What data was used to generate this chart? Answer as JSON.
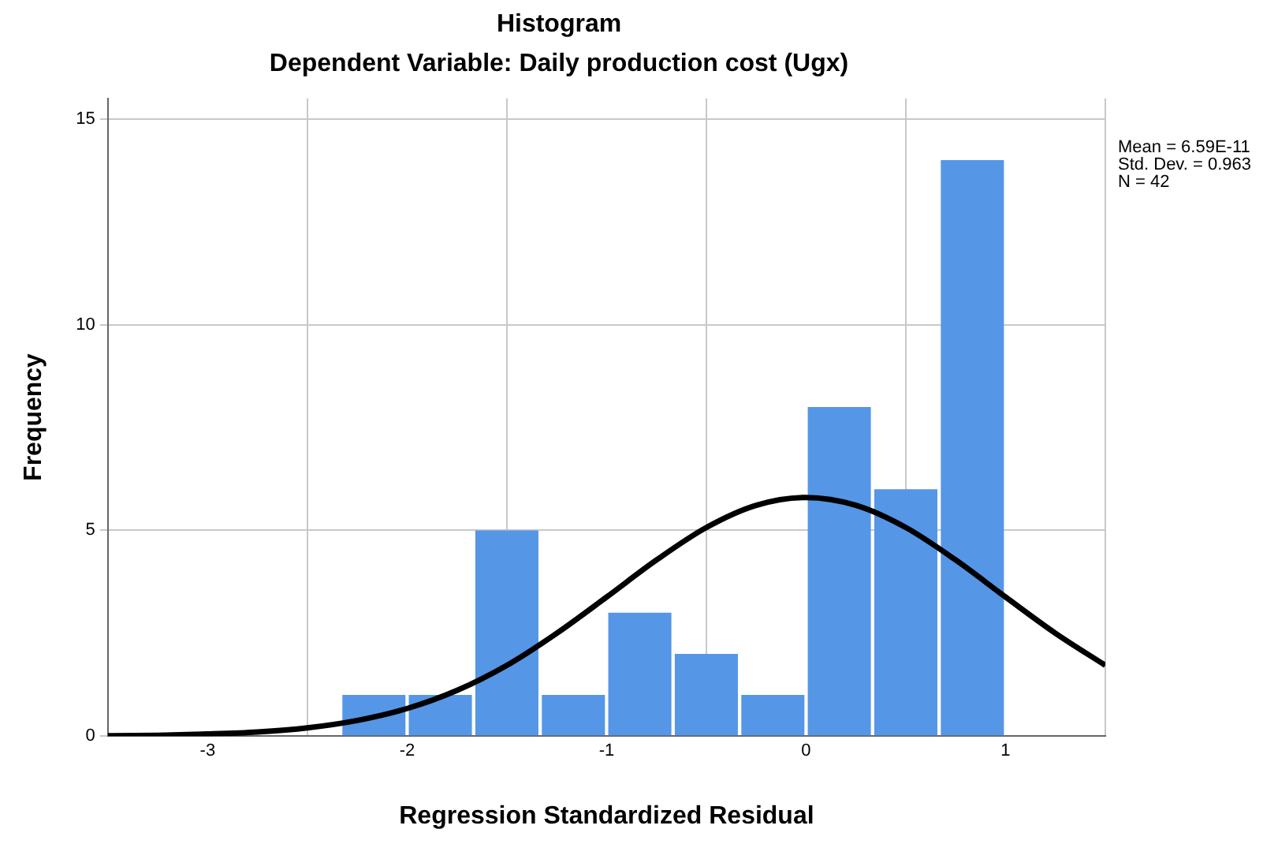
{
  "chart_data": {
    "type": "histogram",
    "title": "Histogram",
    "subtitle": "Dependent Variable: Daily production cost (Ugx)",
    "xlabel": "Regression Standardized Residual",
    "ylabel": "Frequency",
    "bins": [
      -2.333,
      -2,
      -1.667,
      -1.333,
      -1,
      -0.667,
      -0.333,
      0,
      0.333,
      0.667,
      1
    ],
    "values": [
      1,
      1,
      5,
      1,
      3,
      2,
      1,
      8,
      6,
      14
    ],
    "color": "#5596e6",
    "series": [
      {
        "type": "line",
        "color": "#000000",
        "x": [
          -3.5,
          -3.25,
          -3,
          -2.75,
          -2.5,
          -2.25,
          -2,
          -1.75,
          -1.5,
          -1.25,
          -1,
          -0.75,
          -0.5,
          -0.25,
          0,
          0.25,
          0.5,
          0.75,
          1,
          1.25,
          1.5
        ],
        "values": [
          0.01,
          0.02,
          0.05,
          0.1,
          0.2,
          0.38,
          0.67,
          1.11,
          1.72,
          2.5,
          3.38,
          4.28,
          5.07,
          5.61,
          5.8,
          5.61,
          5.07,
          4.28,
          3.38,
          2.5,
          1.72
        ]
      }
    ],
    "xlim": [
      -3.5,
      1.5
    ],
    "xticks": [
      -3,
      -2,
      -1,
      0,
      1
    ],
    "ylim": [
      0,
      15.5
    ],
    "yticks": [
      0,
      5,
      10,
      15
    ],
    "grid": true,
    "legend": false,
    "marker": "none",
    "annotations": [
      "Mean = 6.59E-11",
      "Std. Dev. = 0.963",
      "N = 42"
    ]
  }
}
